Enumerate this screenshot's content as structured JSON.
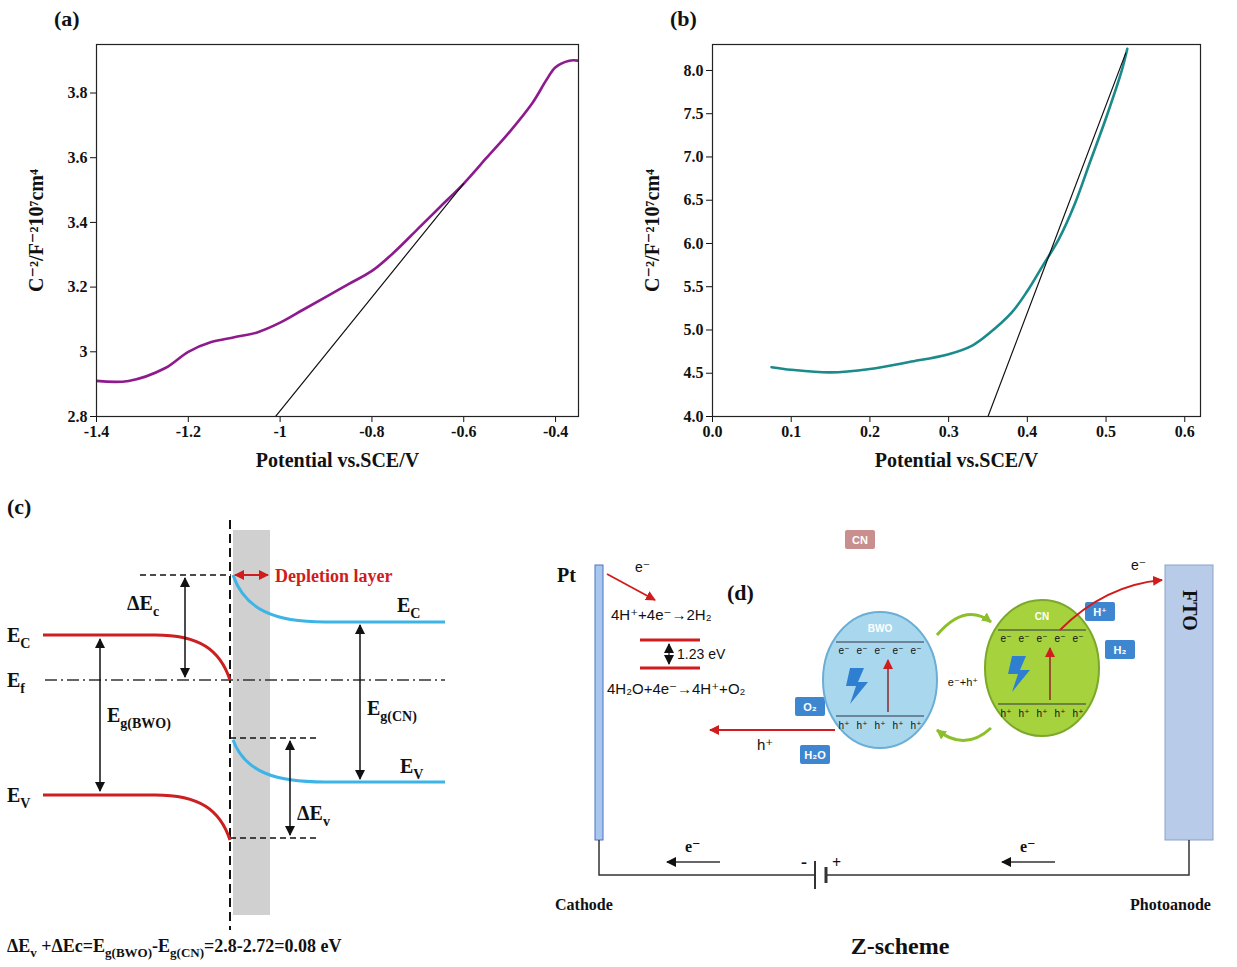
{
  "chart_data": [
    {
      "type": "line",
      "title": "(a)",
      "xlabel": "Potential vs.SCE/V",
      "ylabel": "C⁻²/F⁻²10⁷cm⁴",
      "x": [
        -1.4,
        -1.33,
        -1.25,
        -1.2,
        -1.15,
        -1.1,
        -1.05,
        -1.0,
        -0.95,
        -0.9,
        -0.85,
        -0.8,
        -0.75,
        -0.7,
        -0.65,
        -0.6,
        -0.55,
        -0.5,
        -0.45,
        -0.42,
        -0.4,
        -0.37,
        -0.35
      ],
      "values": [
        2.91,
        2.91,
        2.95,
        3.0,
        3.03,
        3.045,
        3.06,
        3.09,
        3.13,
        3.17,
        3.21,
        3.25,
        3.31,
        3.38,
        3.45,
        3.52,
        3.6,
        3.68,
        3.77,
        3.84,
        3.88,
        3.9,
        3.9
      ],
      "color": "#8e1b8e",
      "tangent": {
        "x": [
          -1.01,
          -0.6
        ],
        "y": [
          2.8,
          3.52
        ],
        "color": "#111111"
      },
      "xlim": [
        -1.4,
        -0.35
      ],
      "xticks": [
        -1.4,
        -1.2,
        -1,
        -0.8,
        -0.6,
        -0.4
      ],
      "ylim": [
        2.8,
        3.95
      ],
      "yticks": [
        2.8,
        3,
        3.2,
        3.4,
        3.6,
        3.8
      ],
      "grid": false
    },
    {
      "type": "line",
      "title": "(b)",
      "xlabel": "Potential vs.SCE/V",
      "ylabel": "C⁻²/F⁻²10⁷cm⁴",
      "x": [
        0.075,
        0.1,
        0.15,
        0.2,
        0.25,
        0.3,
        0.33,
        0.35,
        0.38,
        0.4,
        0.42,
        0.44,
        0.46,
        0.48,
        0.5,
        0.52,
        0.527
      ],
      "values": [
        4.57,
        4.54,
        4.51,
        4.55,
        4.63,
        4.72,
        4.82,
        4.95,
        5.2,
        5.45,
        5.75,
        6.05,
        6.45,
        6.95,
        7.45,
        8.0,
        8.25
      ],
      "color": "#1a8a8a",
      "tangent": {
        "x": [
          0.35,
          0.525
        ],
        "y": [
          4.0,
          8.2
        ],
        "color": "#111111"
      },
      "xlim": [
        0,
        0.62
      ],
      "xticks": [
        {
          "value": 0,
          "label": "0.0"
        },
        0.1,
        0.2,
        0.3,
        0.4,
        0.5,
        0.6
      ],
      "ylim": [
        4.0,
        8.3
      ],
      "yticks": [
        {
          "value": 4,
          "label": "4.0"
        },
        4.5,
        {
          "value": 5,
          "label": "5.0"
        },
        5.5,
        {
          "value": 6,
          "label": "6.0"
        },
        6.5,
        {
          "value": 7,
          "label": "7.0"
        },
        7.5,
        {
          "value": 8,
          "label": "8.0"
        }
      ],
      "grid": false
    }
  ],
  "panels": {
    "c": {
      "letter": "(c)",
      "depletion": "Depletion layer",
      "ec_left": [
        "E",
        "C"
      ],
      "ec_right": [
        "E",
        "C"
      ],
      "ef": [
        "E",
        "f"
      ],
      "ev_left": [
        "E",
        "V"
      ],
      "ev_right": [
        "E",
        "V"
      ],
      "d_ec": [
        "ΔE",
        "c"
      ],
      "d_ev": [
        "ΔE",
        "v"
      ],
      "eg_bwo": [
        "E",
        "g(BWO)"
      ],
      "eg_cn": [
        "E",
        "g(CN)"
      ],
      "caption": [
        [
          "ΔE",
          "v"
        ],
        [
          " +ΔEc=E",
          "g(BWO)"
        ],
        [
          "-E",
          "g(CN)"
        ],
        [
          "=2.8-2.72=0.08 eV"
        ]
      ]
    },
    "d": {
      "letter": "(d)",
      "cathode_metal": "Pt",
      "anode_metal": "FTO",
      "cathode": "Cathode",
      "anode": "Photoanode",
      "caption": "Z-scheme",
      "electron": "e⁻",
      "hole": "h⁺",
      "h2_reaction": "4H⁺+4e⁻→2H₂",
      "o2_reaction": "4H₂O+4e⁻→4H⁺+O₂",
      "gap": "1.23 eV",
      "bwo": "BWO",
      "cn": "CN",
      "pair": "e⁻+h⁺",
      "o2": "O₂",
      "h2o": "H₂O",
      "hplus": "H⁺",
      "h2": "H₂",
      "minus": "-",
      "plus": "+"
    }
  }
}
